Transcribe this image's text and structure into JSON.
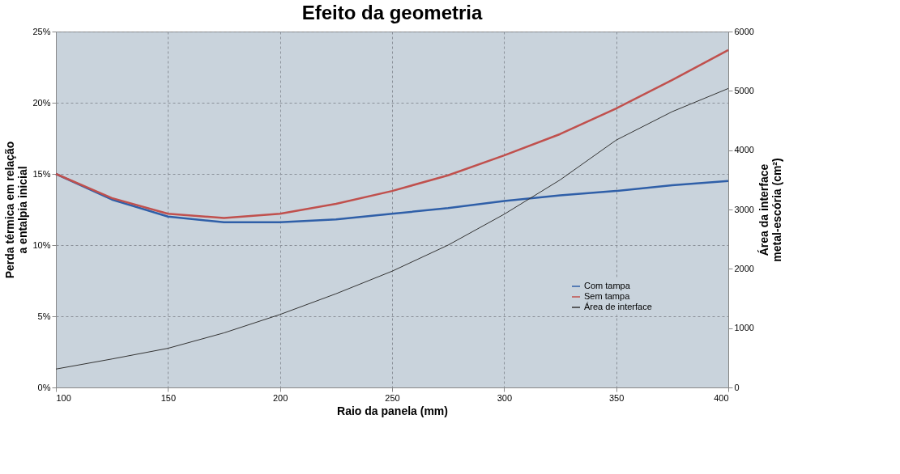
{
  "chart_data": {
    "type": "line",
    "title": "Efeito da geometria",
    "xlabel": "Raio da panela (mm)",
    "ylabel": "Perda térmica em relação\na entalpia inicial",
    "y2label": "Área da interface\nmetal-escória (cm²)",
    "x": [
      100,
      125,
      150,
      175,
      200,
      225,
      250,
      275,
      300,
      325,
      350,
      375,
      400
    ],
    "xlim": [
      100,
      400
    ],
    "xticks": [
      100,
      150,
      200,
      250,
      300,
      350,
      400
    ],
    "ylim": [
      0,
      25
    ],
    "yticks": [
      {
        "value": 0,
        "label": "0%"
      },
      {
        "value": 5,
        "label": "5%"
      },
      {
        "value": 10,
        "label": "10%"
      },
      {
        "value": 15,
        "label": "15%"
      },
      {
        "value": 20,
        "label": "20%"
      },
      {
        "value": 25,
        "label": "25%"
      }
    ],
    "y2lim": [
      0,
      6000
    ],
    "y2ticks": [
      0,
      1000,
      2000,
      3000,
      4000,
      5000,
      6000
    ],
    "grid": true,
    "legend": "bottom right",
    "marker": "none",
    "line_style": "solid",
    "series": [
      {
        "name": "Com tampa",
        "color": "#2f5fa8",
        "values": [
          15.0,
          13.2,
          12.0,
          11.6,
          11.6,
          11.8,
          12.2,
          12.6,
          13.1,
          13.5,
          13.8,
          14.2,
          14.5
        ]
      },
      {
        "name": "Sem tampa",
        "color": "#c0504d",
        "values": [
          15.0,
          13.3,
          12.2,
          11.9,
          12.2,
          12.9,
          13.8,
          14.9,
          16.3,
          17.8,
          19.6,
          21.6,
          23.7
        ]
      },
      {
        "name": "Área de interface",
        "color": "#333333",
        "axis": "y2",
        "values": [
          310,
          480,
          660,
          920,
          1230,
          1580,
          1960,
          2400,
          2920,
          3500,
          4170,
          4650,
          5040
        ]
      }
    ]
  }
}
